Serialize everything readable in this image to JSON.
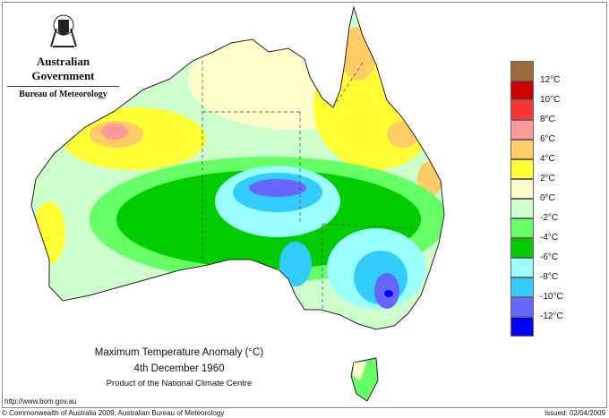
{
  "header": {
    "government": "Australian Government",
    "bureau": "Bureau of Meteorology"
  },
  "map": {
    "title": "Maximum Temperature Anomaly (°C)",
    "date": "4th December 1960",
    "product": "Product of the National Climate Centre"
  },
  "legend": {
    "labels": [
      "12°C",
      "10°C",
      "8°C",
      "6°C",
      "4°C",
      "2°C",
      "0°C",
      "-2°C",
      "-4°C",
      "-6°C",
      "-8°C",
      "-10°C",
      "-12°C"
    ],
    "colors": [
      "#9c6b3c",
      "#cc0000",
      "#ff3333",
      "#ff9999",
      "#ffcc66",
      "#ffff33",
      "#ffffcc",
      "#ccffcc",
      "#66ff66",
      "#00cc00",
      "#99ffff",
      "#33ccff",
      "#6666ff",
      "#0000ff"
    ]
  },
  "footer": {
    "url": "http://www.bom.gov.au",
    "copyright": "© Commonwealth of Australia 2009, Australian Bureau of Meteorology",
    "issued": "Issued: 02/04/2009"
  }
}
